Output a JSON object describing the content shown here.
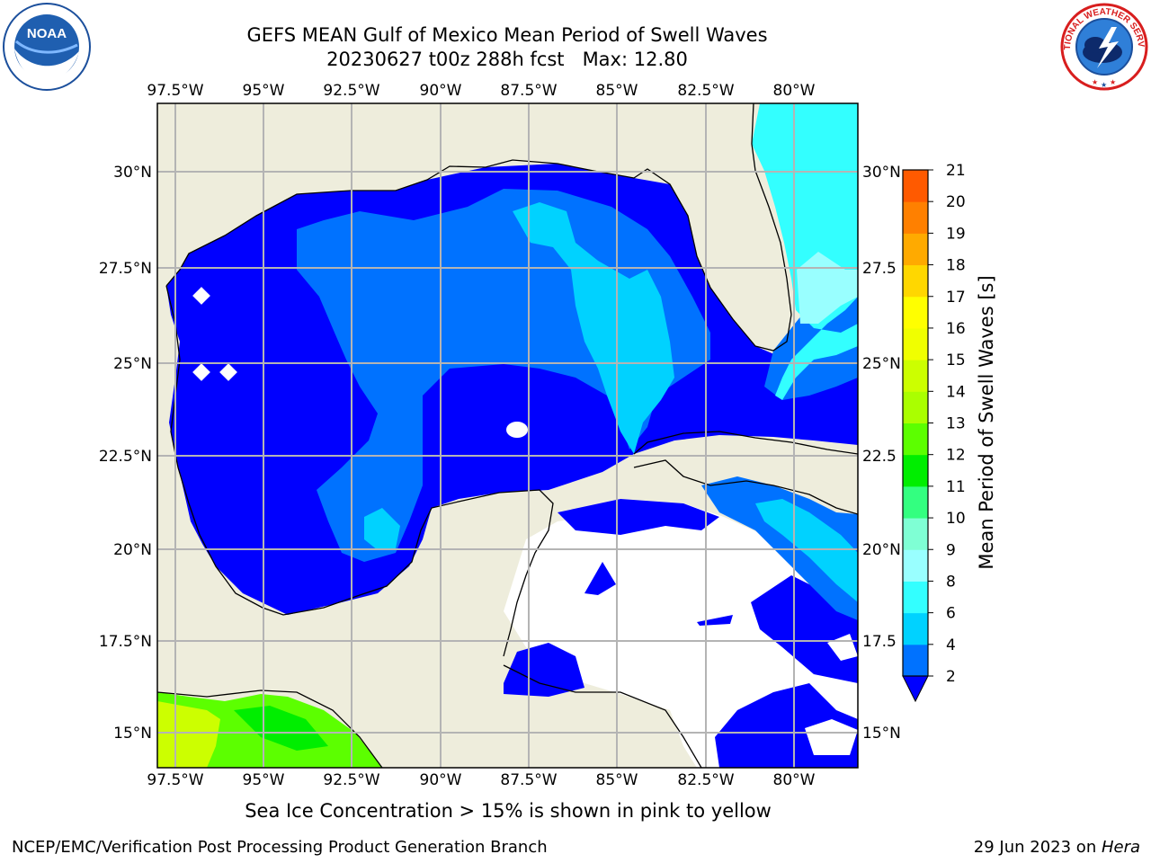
{
  "title": {
    "line1": "GEFS MEAN Gulf of Mexico Mean Period of Swell Waves",
    "line2": "20230627 t00z 288h fcst   Max: 12.80"
  },
  "logos": {
    "left": {
      "icon": "noaa-logo",
      "text": "NOAA"
    },
    "right": {
      "icon": "nws-logo",
      "ring_text": "NATIONAL WEATHER SERVICE"
    }
  },
  "map": {
    "lon_labels": [
      "97.5°W",
      "95°W",
      "92.5°W",
      "90°W",
      "87.5°W",
      "85°W",
      "82.5°W",
      "80°W"
    ],
    "lat_labels": [
      "30°N",
      "27.5°N",
      "25°N",
      "22.5°N",
      "20°N",
      "17.5°N",
      "15°N"
    ],
    "lat_labels_right": [
      "30°N",
      "27.5",
      "25°N",
      "22.5",
      "20°N",
      "17.5",
      "15°N"
    ],
    "colors": {
      "land": "#eeeddc",
      "no_data": "#ffffff",
      "coast": "#000000",
      "grid": "#b4b4b4"
    }
  },
  "colorbar": {
    "label": "Mean Period of Swell Waves [s]",
    "ticks": [
      "2",
      "4",
      "6",
      "8",
      "9",
      "10",
      "11",
      "12",
      "13",
      "14",
      "15",
      "16",
      "17",
      "18",
      "19",
      "20",
      "21"
    ],
    "colors": [
      "#0072ff",
      "#00d2ff",
      "#33ffff",
      "#99ffff",
      "#7fffd4",
      "#33ff80",
      "#00ee00",
      "#5cff00",
      "#aaff00",
      "#ccff00",
      "#f0ff00",
      "#ffff00",
      "#ffd700",
      "#ffaa00",
      "#ff8000",
      "#ff5a00",
      "#ff2a00",
      "#ff0000"
    ],
    "under_color": "#0000ff"
  },
  "footer": {
    "note": "Sea Ice Concentration > 15% is shown in pink to yellow",
    "credit_left": "NCEP/EMC/Verification Post Processing Product Generation Branch",
    "date": "29 Jun 2023 on ",
    "host": "Hera"
  }
}
